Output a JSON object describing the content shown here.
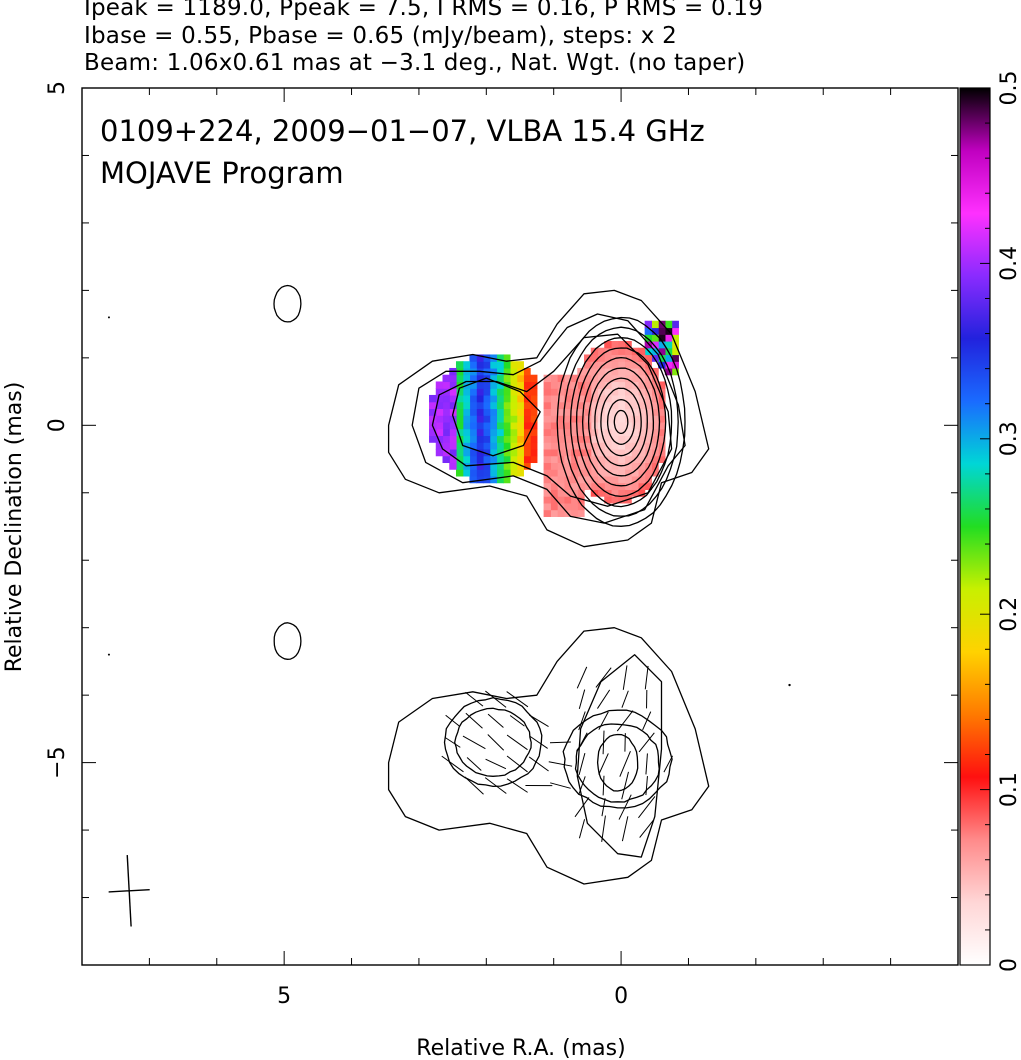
{
  "header": {
    "line1": "Ipeak = 1189.0, Ppeak = 7.5, I RMS = 0.16, P RMS = 0.19",
    "line2": "Ibase = 0.55, Pbase = 0.65 (mJy/beam), steps: x 2",
    "line3": "Beam: 1.06x0.61 mas at −3.1 deg., Nat. Wgt. (no taper)"
  },
  "plot": {
    "title_line1": "0109+224, 2009−01−07, VLBA 15.4 GHz",
    "title_line2": "MOJAVE Program",
    "xlabel": "Relative R.A. (mas)",
    "ylabel": "Relative Declination (mas)"
  },
  "chart_data": {
    "type": "heatmap",
    "source": "0109+224",
    "date": "2009-01-07",
    "frequency": "15.4 GHz",
    "xlim": [
      8,
      -5
    ],
    "ylim": [
      -8,
      5
    ],
    "x_ticks": [
      {
        "v": 5,
        "label": "5"
      },
      {
        "v": 0,
        "label": "0"
      }
    ],
    "y_ticks": [
      {
        "v": 5,
        "label": "5"
      },
      {
        "v": 0,
        "label": "0"
      },
      {
        "v": -5,
        "label": "−5"
      }
    ],
    "x_minor_step": 1,
    "y_minor_step": 1,
    "colorbar": {
      "range": [
        0,
        0.5
      ],
      "ticks": [
        {
          "v": 0,
          "label": "0"
        },
        {
          "v": 0.1,
          "label": "0.1"
        },
        {
          "v": 0.2,
          "label": "0.2"
        },
        {
          "v": 0.3,
          "label": "0.3"
        },
        {
          "v": 0.4,
          "label": "0.4"
        },
        {
          "v": 0.5,
          "label": "0.5"
        }
      ],
      "minor_step": 0.02,
      "colors": [
        "#ffffff",
        "#ffd6d6",
        "#ff8a8a",
        "#ff1010",
        "#ff7a00",
        "#ffd200",
        "#c8f000",
        "#22dd22",
        "#00d6d6",
        "#1a6bff",
        "#2222dd",
        "#8a2bff",
        "#ff30ff",
        "#c000c0",
        "#000000"
      ]
    },
    "panels": [
      {
        "name": "fractional-polarization",
        "center": [
          0,
          0
        ],
        "core_fracpol": 0.03,
        "jet_knot_fracpol": 0.33,
        "edge_fracpol": 0.5
      },
      {
        "name": "polarized-intensity-evpa",
        "center": [
          0,
          -5
        ]
      }
    ],
    "beam": {
      "major_mas": 1.06,
      "minor_mas": 0.61,
      "pa_deg": -3.1,
      "x": 7.3,
      "y": -6.9
    },
    "contour_base_mJy": 0.55,
    "contour_step_factor": 2
  }
}
